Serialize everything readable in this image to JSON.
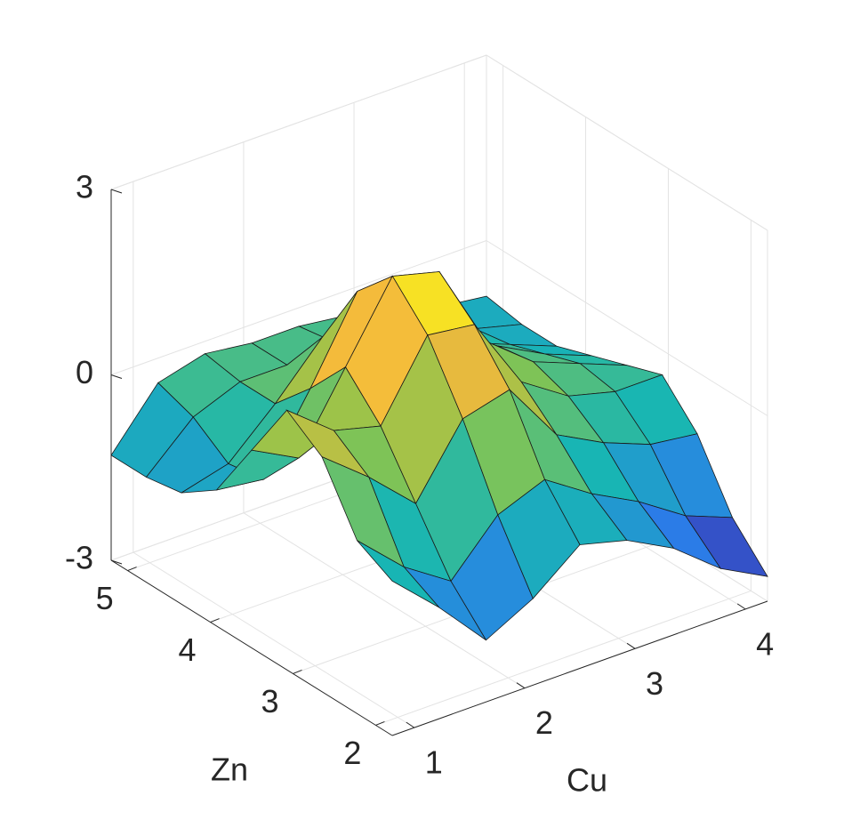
{
  "chart_data": {
    "type": "surface",
    "xlabel": "Cu",
    "ylabel": "Zn",
    "x": [
      0.8,
      1.225,
      1.65,
      2.075,
      2.5,
      2.925,
      3.35,
      3.775,
      4.2
    ],
    "y": [
      1.8,
      2.225,
      2.65,
      3.075,
      3.5,
      3.925,
      4.35,
      4.775,
      5.2
    ],
    "z": [
      [
        -0.5,
        -1.2,
        -2.0,
        -1.6,
        -1.0,
        -1.2,
        -1.6,
        -2.2,
        -2.6
      ],
      [
        -0.2,
        -0.9,
        -1.4,
        -0.6,
        -0.3,
        -0.8,
        -1.2,
        -1.7,
        -2.0
      ],
      [
        0.8,
        0.2,
        -0.5,
        0.6,
        0.8,
        -0.2,
        -0.6,
        -0.9,
        -1.0
      ],
      [
        1.2,
        0.6,
        0.4,
        1.6,
        1.5,
        0.3,
        -0.2,
        -0.4,
        -0.4
      ],
      [
        0.2,
        -0.2,
        1.0,
        2.2,
        2.0,
        0.6,
        0.0,
        -0.3,
        -0.6
      ],
      [
        -0.8,
        -0.9,
        0.3,
        1.6,
        1.4,
        0.4,
        -0.1,
        -0.5,
        -0.8
      ],
      [
        -1.2,
        -1.0,
        -0.3,
        0.5,
        0.5,
        0.0,
        -0.4,
        -0.7,
        -1.0
      ],
      [
        -1.3,
        -0.6,
        -0.3,
        -0.3,
        -0.2,
        -0.3,
        -0.6,
        -0.8,
        -1.0
      ],
      [
        -1.3,
        -0.4,
        -0.2,
        -0.3,
        -0.3,
        -0.4,
        -0.6,
        -0.8,
        -0.9
      ]
    ],
    "xlim": [
      0.8,
      4.2
    ],
    "ylim": [
      1.8,
      5.2
    ],
    "zlim": [
      -3,
      3
    ],
    "xticks": [
      1,
      2,
      3,
      4
    ],
    "yticks": [
      2,
      3,
      4,
      5
    ],
    "zticks": [
      -3,
      0,
      3
    ],
    "grid": true,
    "colormap": [
      "#3e26a8",
      "#2a7fe9",
      "#18b6b3",
      "#8ac54c",
      "#f4b93c",
      "#f9fb15"
    ]
  }
}
